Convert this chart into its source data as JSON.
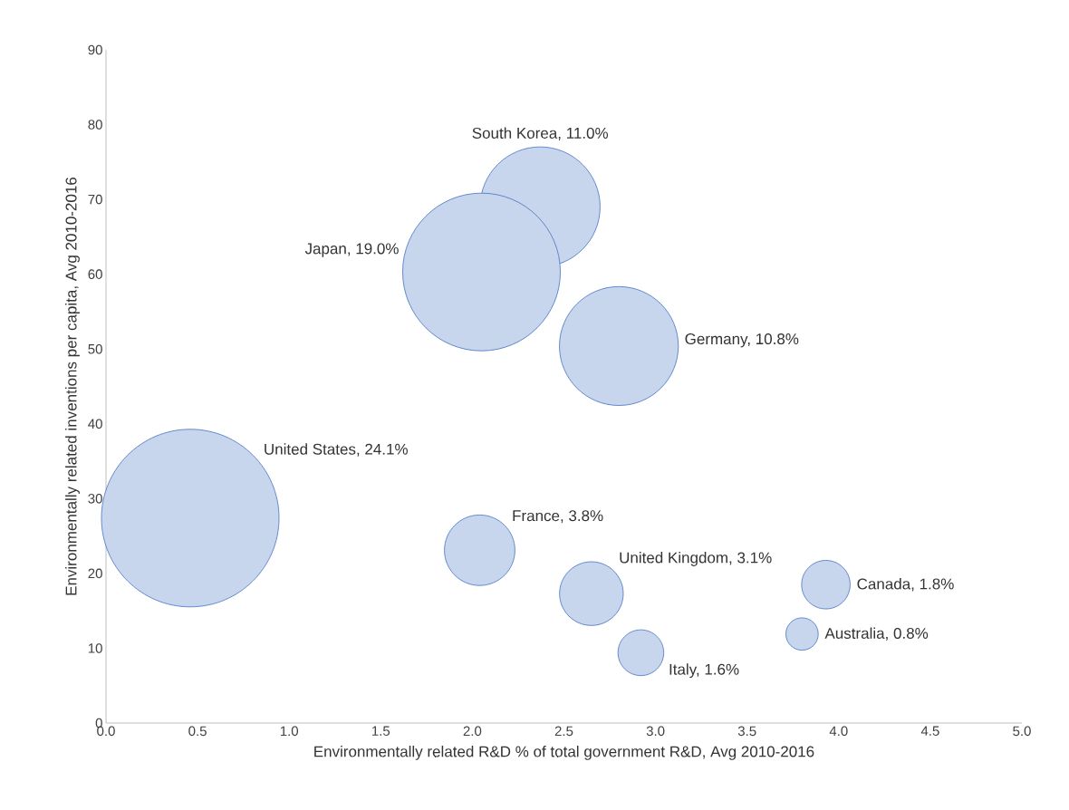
{
  "chart_data": {
    "type": "bubble",
    "xlabel": "Environmentally related R&D % of total government R&D, Avg 2010-2016",
    "ylabel": "Environmentally related inventions per capita, Avg 2010-2016",
    "x": [
      2.37,
      2.05,
      2.8,
      0.46,
      2.04,
      2.65,
      3.93,
      2.92,
      3.8
    ],
    "values": [
      69.0,
      60.3,
      50.4,
      27.4,
      23.1,
      17.3,
      18.5,
      9.4,
      11.9
    ],
    "sizes": [
      11.0,
      19.0,
      10.8,
      24.1,
      3.8,
      3.1,
      1.8,
      1.6,
      0.8
    ],
    "value_labels": [
      "South Korea, 11.0%",
      "Japan, 19.0%",
      "Germany, 10.8%",
      "United States, 24.1%",
      "France, 3.8%",
      "United Kingdom, 3.1%",
      "Canada, 1.8%",
      "Italy, 1.6%",
      "Australia, 0.8%"
    ],
    "color": "#4472c4",
    "xlim": [
      0,
      5
    ],
    "xticks": [
      {
        "value": 0,
        "label": "0.0"
      },
      {
        "value": 0.5,
        "label": "0.5"
      },
      {
        "value": 1,
        "label": "1.0"
      },
      {
        "value": 1.5,
        "label": "1.5"
      },
      {
        "value": 2,
        "label": "2.0"
      },
      {
        "value": 2.5,
        "label": "2.5"
      },
      {
        "value": 3,
        "label": "3.0"
      },
      {
        "value": 3.5,
        "label": "3.5"
      },
      {
        "value": 4,
        "label": "4.0"
      },
      {
        "value": 4.5,
        "label": "4.5"
      },
      {
        "value": 5,
        "label": "5.0"
      }
    ],
    "ylim": [
      0,
      90
    ],
    "yticks": [
      0,
      10,
      20,
      30,
      40,
      50,
      60,
      70,
      80,
      90
    ]
  }
}
